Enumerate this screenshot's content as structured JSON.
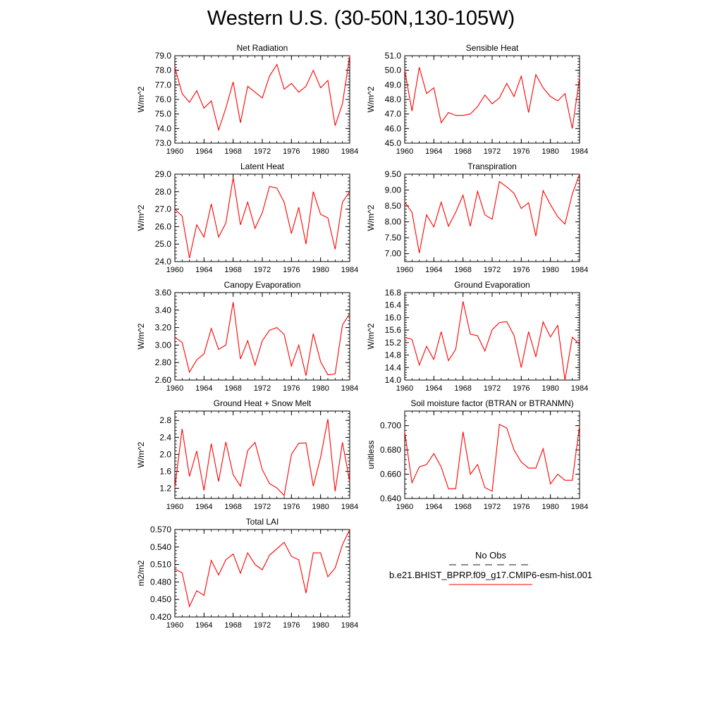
{
  "title": "Western U.S. (30-50N,130-105W)",
  "line_color": "#ff0000",
  "legend": {
    "obs_label": "No Obs",
    "model_label": "b.e21.BHIST_BPRP.f09_g17.CMIP6-esm-hist.001",
    "obs_color": "#1a1a1a",
    "model_color": "#ff0000"
  },
  "chart_data": [
    {
      "type": "line",
      "title": "Net Radiation",
      "ylabel": "W/m^2",
      "xlim": [
        1960,
        1984
      ],
      "ylim": [
        73.0,
        79.0
      ],
      "xticks": [
        "1960",
        "1964",
        "1968",
        "1972",
        "1976",
        "1980",
        "1984"
      ],
      "yticks": [
        "73.0",
        "74.0",
        "75.0",
        "76.0",
        "77.0",
        "78.0",
        "79.0"
      ],
      "x": [
        1960,
        1961,
        1962,
        1963,
        1964,
        1965,
        1966,
        1967,
        1968,
        1969,
        1970,
        1971,
        1972,
        1973,
        1974,
        1975,
        1976,
        1977,
        1978,
        1979,
        1980,
        1981,
        1982,
        1983,
        1984
      ],
      "series": [
        {
          "name": "b.e21.BHIST_BPRP.f09_g17.CMIP6-esm-hist.001",
          "values": [
            78.2,
            76.4,
            75.8,
            76.6,
            75.4,
            75.9,
            73.9,
            75.4,
            77.2,
            74.4,
            76.9,
            76.5,
            76.1,
            77.6,
            78.4,
            76.7,
            77.1,
            76.5,
            76.9,
            78.0,
            76.8,
            77.3,
            74.2,
            75.7,
            79.0
          ]
        }
      ]
    },
    {
      "type": "line",
      "title": "Sensible Heat",
      "ylabel": "W/m^2",
      "xlim": [
        1960,
        1984
      ],
      "ylim": [
        45.0,
        51.0
      ],
      "xticks": [
        "1960",
        "1964",
        "1968",
        "1972",
        "1976",
        "1980",
        "1984"
      ],
      "yticks": [
        "45.0",
        "46.0",
        "47.0",
        "48.0",
        "49.0",
        "50.0",
        "51.0"
      ],
      "x": [
        1960,
        1961,
        1962,
        1963,
        1964,
        1965,
        1966,
        1967,
        1968,
        1969,
        1970,
        1971,
        1972,
        1973,
        1974,
        1975,
        1976,
        1977,
        1978,
        1979,
        1980,
        1981,
        1982,
        1983,
        1984
      ],
      "series": [
        {
          "name": "b.e21.BHIST_BPRP.f09_g17.CMIP6-esm-hist.001",
          "values": [
            50.0,
            47.2,
            50.2,
            48.4,
            48.8,
            46.4,
            47.1,
            46.9,
            46.9,
            47.0,
            47.5,
            48.3,
            47.7,
            48.1,
            49.1,
            48.2,
            49.6,
            47.1,
            49.7,
            48.8,
            48.2,
            47.9,
            48.4,
            46.0,
            49.5
          ]
        }
      ]
    },
    {
      "type": "line",
      "title": "Latent Heat",
      "ylabel": "W/m^2",
      "xlim": [
        1960,
        1984
      ],
      "ylim": [
        24.0,
        29.0
      ],
      "xticks": [
        "1960",
        "1964",
        "1968",
        "1972",
        "1976",
        "1980",
        "1984"
      ],
      "yticks": [
        "24.0",
        "25.0",
        "26.0",
        "27.0",
        "28.0",
        "29.0"
      ],
      "x": [
        1960,
        1961,
        1962,
        1963,
        1964,
        1965,
        1966,
        1967,
        1968,
        1969,
        1970,
        1971,
        1972,
        1973,
        1974,
        1975,
        1976,
        1977,
        1978,
        1979,
        1980,
        1981,
        1982,
        1983,
        1984
      ],
      "series": [
        {
          "name": "b.e21.BHIST_BPRP.f09_g17.CMIP6-esm-hist.001",
          "values": [
            27.0,
            26.6,
            24.2,
            26.1,
            25.4,
            27.3,
            25.4,
            26.2,
            28.8,
            26.1,
            27.4,
            25.9,
            26.8,
            28.3,
            28.2,
            27.4,
            25.6,
            27.1,
            25.0,
            28.0,
            26.7,
            26.5,
            24.7,
            27.4,
            28.0
          ]
        }
      ]
    },
    {
      "type": "line",
      "title": "Transpiration",
      "ylabel": "W/m^2",
      "xlim": [
        1960,
        1984
      ],
      "ylim": [
        6.75,
        9.5
      ],
      "xticks": [
        "1960",
        "1964",
        "1968",
        "1972",
        "1976",
        "1980",
        "1984"
      ],
      "yticks": [
        "7.00",
        "7.50",
        "8.00",
        "8.50",
        "9.00",
        "9.50"
      ],
      "x": [
        1960,
        1961,
        1962,
        1963,
        1964,
        1965,
        1966,
        1967,
        1968,
        1969,
        1970,
        1971,
        1972,
        1973,
        1974,
        1975,
        1976,
        1977,
        1978,
        1979,
        1980,
        1981,
        1982,
        1983,
        1984
      ],
      "series": [
        {
          "name": "b.e21.BHIST_BPRP.f09_g17.CMIP6-esm-hist.001",
          "values": [
            8.62,
            8.3,
            7.02,
            8.22,
            7.84,
            8.62,
            7.86,
            8.3,
            8.84,
            7.86,
            8.96,
            8.22,
            8.08,
            9.27,
            9.1,
            8.9,
            8.42,
            8.6,
            7.55,
            8.98,
            8.54,
            8.16,
            7.93,
            8.88,
            9.56
          ]
        }
      ]
    },
    {
      "type": "line",
      "title": "Canopy Evaporation",
      "ylabel": "W/m^2",
      "xlim": [
        1960,
        1984
      ],
      "ylim": [
        2.6,
        3.6
      ],
      "xticks": [
        "1960",
        "1964",
        "1968",
        "1972",
        "1976",
        "1980",
        "1984"
      ],
      "yticks": [
        "2.60",
        "2.80",
        "3.00",
        "3.20",
        "3.40",
        "3.60"
      ],
      "x": [
        1960,
        1961,
        1962,
        1963,
        1964,
        1965,
        1966,
        1967,
        1968,
        1969,
        1970,
        1971,
        1972,
        1973,
        1974,
        1975,
        1976,
        1977,
        1978,
        1979,
        1980,
        1981,
        1982,
        1983,
        1984
      ],
      "series": [
        {
          "name": "b.e21.BHIST_BPRP.f09_g17.CMIP6-esm-hist.001",
          "values": [
            3.09,
            3.03,
            2.69,
            2.83,
            2.9,
            3.19,
            2.95,
            3.0,
            3.49,
            2.84,
            3.05,
            2.77,
            3.05,
            3.17,
            3.2,
            3.12,
            2.76,
            3.0,
            2.65,
            3.13,
            2.81,
            2.66,
            2.67,
            3.23,
            3.36
          ]
        }
      ]
    },
    {
      "type": "line",
      "title": "Ground Evaporation",
      "ylabel": "W/m^2",
      "xlim": [
        1960,
        1984
      ],
      "ylim": [
        14.0,
        16.8
      ],
      "xticks": [
        "1960",
        "1964",
        "1968",
        "1972",
        "1976",
        "1980",
        "1984"
      ],
      "yticks": [
        "14.0",
        "14.4",
        "14.8",
        "15.2",
        "15.6",
        "16.0",
        "16.4",
        "16.8"
      ],
      "x": [
        1960,
        1961,
        1962,
        1963,
        1964,
        1965,
        1966,
        1967,
        1968,
        1969,
        1970,
        1971,
        1972,
        1973,
        1974,
        1975,
        1976,
        1977,
        1978,
        1979,
        1980,
        1981,
        1982,
        1983,
        1984
      ],
      "series": [
        {
          "name": "b.e21.BHIST_BPRP.f09_g17.CMIP6-esm-hist.001",
          "values": [
            15.37,
            15.3,
            14.48,
            15.08,
            14.66,
            15.55,
            14.62,
            14.98,
            16.52,
            15.47,
            15.42,
            14.93,
            15.61,
            15.84,
            15.87,
            15.43,
            14.4,
            15.55,
            14.74,
            15.86,
            15.38,
            15.75,
            14.0,
            15.37,
            15.15
          ]
        }
      ]
    },
    {
      "type": "line",
      "title": "Ground Heat + Snow Melt",
      "ylabel": "W/m^2",
      "xlim": [
        1960,
        1984
      ],
      "ylim": [
        0.96,
        3.02
      ],
      "xticks": [
        "1960",
        "1964",
        "1968",
        "1972",
        "1976",
        "1980",
        "1984"
      ],
      "yticks": [
        "1.2",
        "1.6",
        "2.0",
        "2.4",
        "2.8"
      ],
      "x": [
        1960,
        1961,
        1962,
        1963,
        1964,
        1965,
        1966,
        1967,
        1968,
        1969,
        1970,
        1971,
        1972,
        1973,
        1974,
        1975,
        1976,
        1977,
        1978,
        1979,
        1980,
        1981,
        1982,
        1983,
        1984
      ],
      "series": [
        {
          "name": "b.e21.BHIST_BPRP.f09_g17.CMIP6-esm-hist.001",
          "values": [
            1.21,
            2.6,
            1.48,
            2.08,
            1.15,
            2.25,
            1.36,
            2.29,
            1.52,
            1.25,
            2.09,
            2.28,
            1.64,
            1.31,
            1.21,
            1.03,
            2.0,
            2.26,
            2.27,
            1.25,
            1.93,
            2.83,
            1.13,
            2.28,
            1.36
          ]
        }
      ]
    },
    {
      "type": "line",
      "title": "Soil moisture factor (BTRAN or BTRANMN)",
      "ylabel": "unitless",
      "xlim": [
        1960,
        1984
      ],
      "ylim": [
        0.64,
        0.712
      ],
      "xticks": [
        "1960",
        "1964",
        "1968",
        "1972",
        "1976",
        "1980",
        "1984"
      ],
      "yticks": [
        "0.640",
        "0.660",
        "0.680",
        "0.700"
      ],
      "x": [
        1960,
        1961,
        1962,
        1963,
        1964,
        1965,
        1966,
        1967,
        1968,
        1969,
        1970,
        1971,
        1972,
        1973,
        1974,
        1975,
        1976,
        1977,
        1978,
        1979,
        1980,
        1981,
        1982,
        1983,
        1984
      ],
      "series": [
        {
          "name": "b.e21.BHIST_BPRP.f09_g17.CMIP6-esm-hist.001",
          "values": [
            0.695,
            0.653,
            0.666,
            0.668,
            0.677,
            0.666,
            0.648,
            0.648,
            0.695,
            0.66,
            0.668,
            0.649,
            0.646,
            0.701,
            0.698,
            0.68,
            0.67,
            0.665,
            0.665,
            0.681,
            0.652,
            0.66,
            0.655,
            0.655,
            0.7
          ]
        }
      ]
    },
    {
      "type": "line",
      "title": "Total LAI",
      "ylabel": "m2/m2",
      "xlim": [
        1960,
        1984
      ],
      "ylim": [
        0.42,
        0.57
      ],
      "xticks": [
        "1960",
        "1964",
        "1968",
        "1972",
        "1976",
        "1980",
        "1984"
      ],
      "yticks": [
        "0.420",
        "0.450",
        "0.480",
        "0.510",
        "0.540",
        "0.570"
      ],
      "x": [
        1960,
        1961,
        1962,
        1963,
        1964,
        1965,
        1966,
        1967,
        1968,
        1969,
        1970,
        1971,
        1972,
        1973,
        1974,
        1975,
        1976,
        1977,
        1978,
        1979,
        1980,
        1981,
        1982,
        1983,
        1984
      ],
      "series": [
        {
          "name": "b.e21.BHIST_BPRP.f09_g17.CMIP6-esm-hist.001",
          "values": [
            0.502,
            0.496,
            0.438,
            0.465,
            0.457,
            0.517,
            0.492,
            0.518,
            0.528,
            0.495,
            0.53,
            0.51,
            0.501,
            0.526,
            0.537,
            0.548,
            0.524,
            0.518,
            0.461,
            0.53,
            0.53,
            0.489,
            0.504,
            0.544,
            0.571
          ]
        }
      ]
    }
  ]
}
